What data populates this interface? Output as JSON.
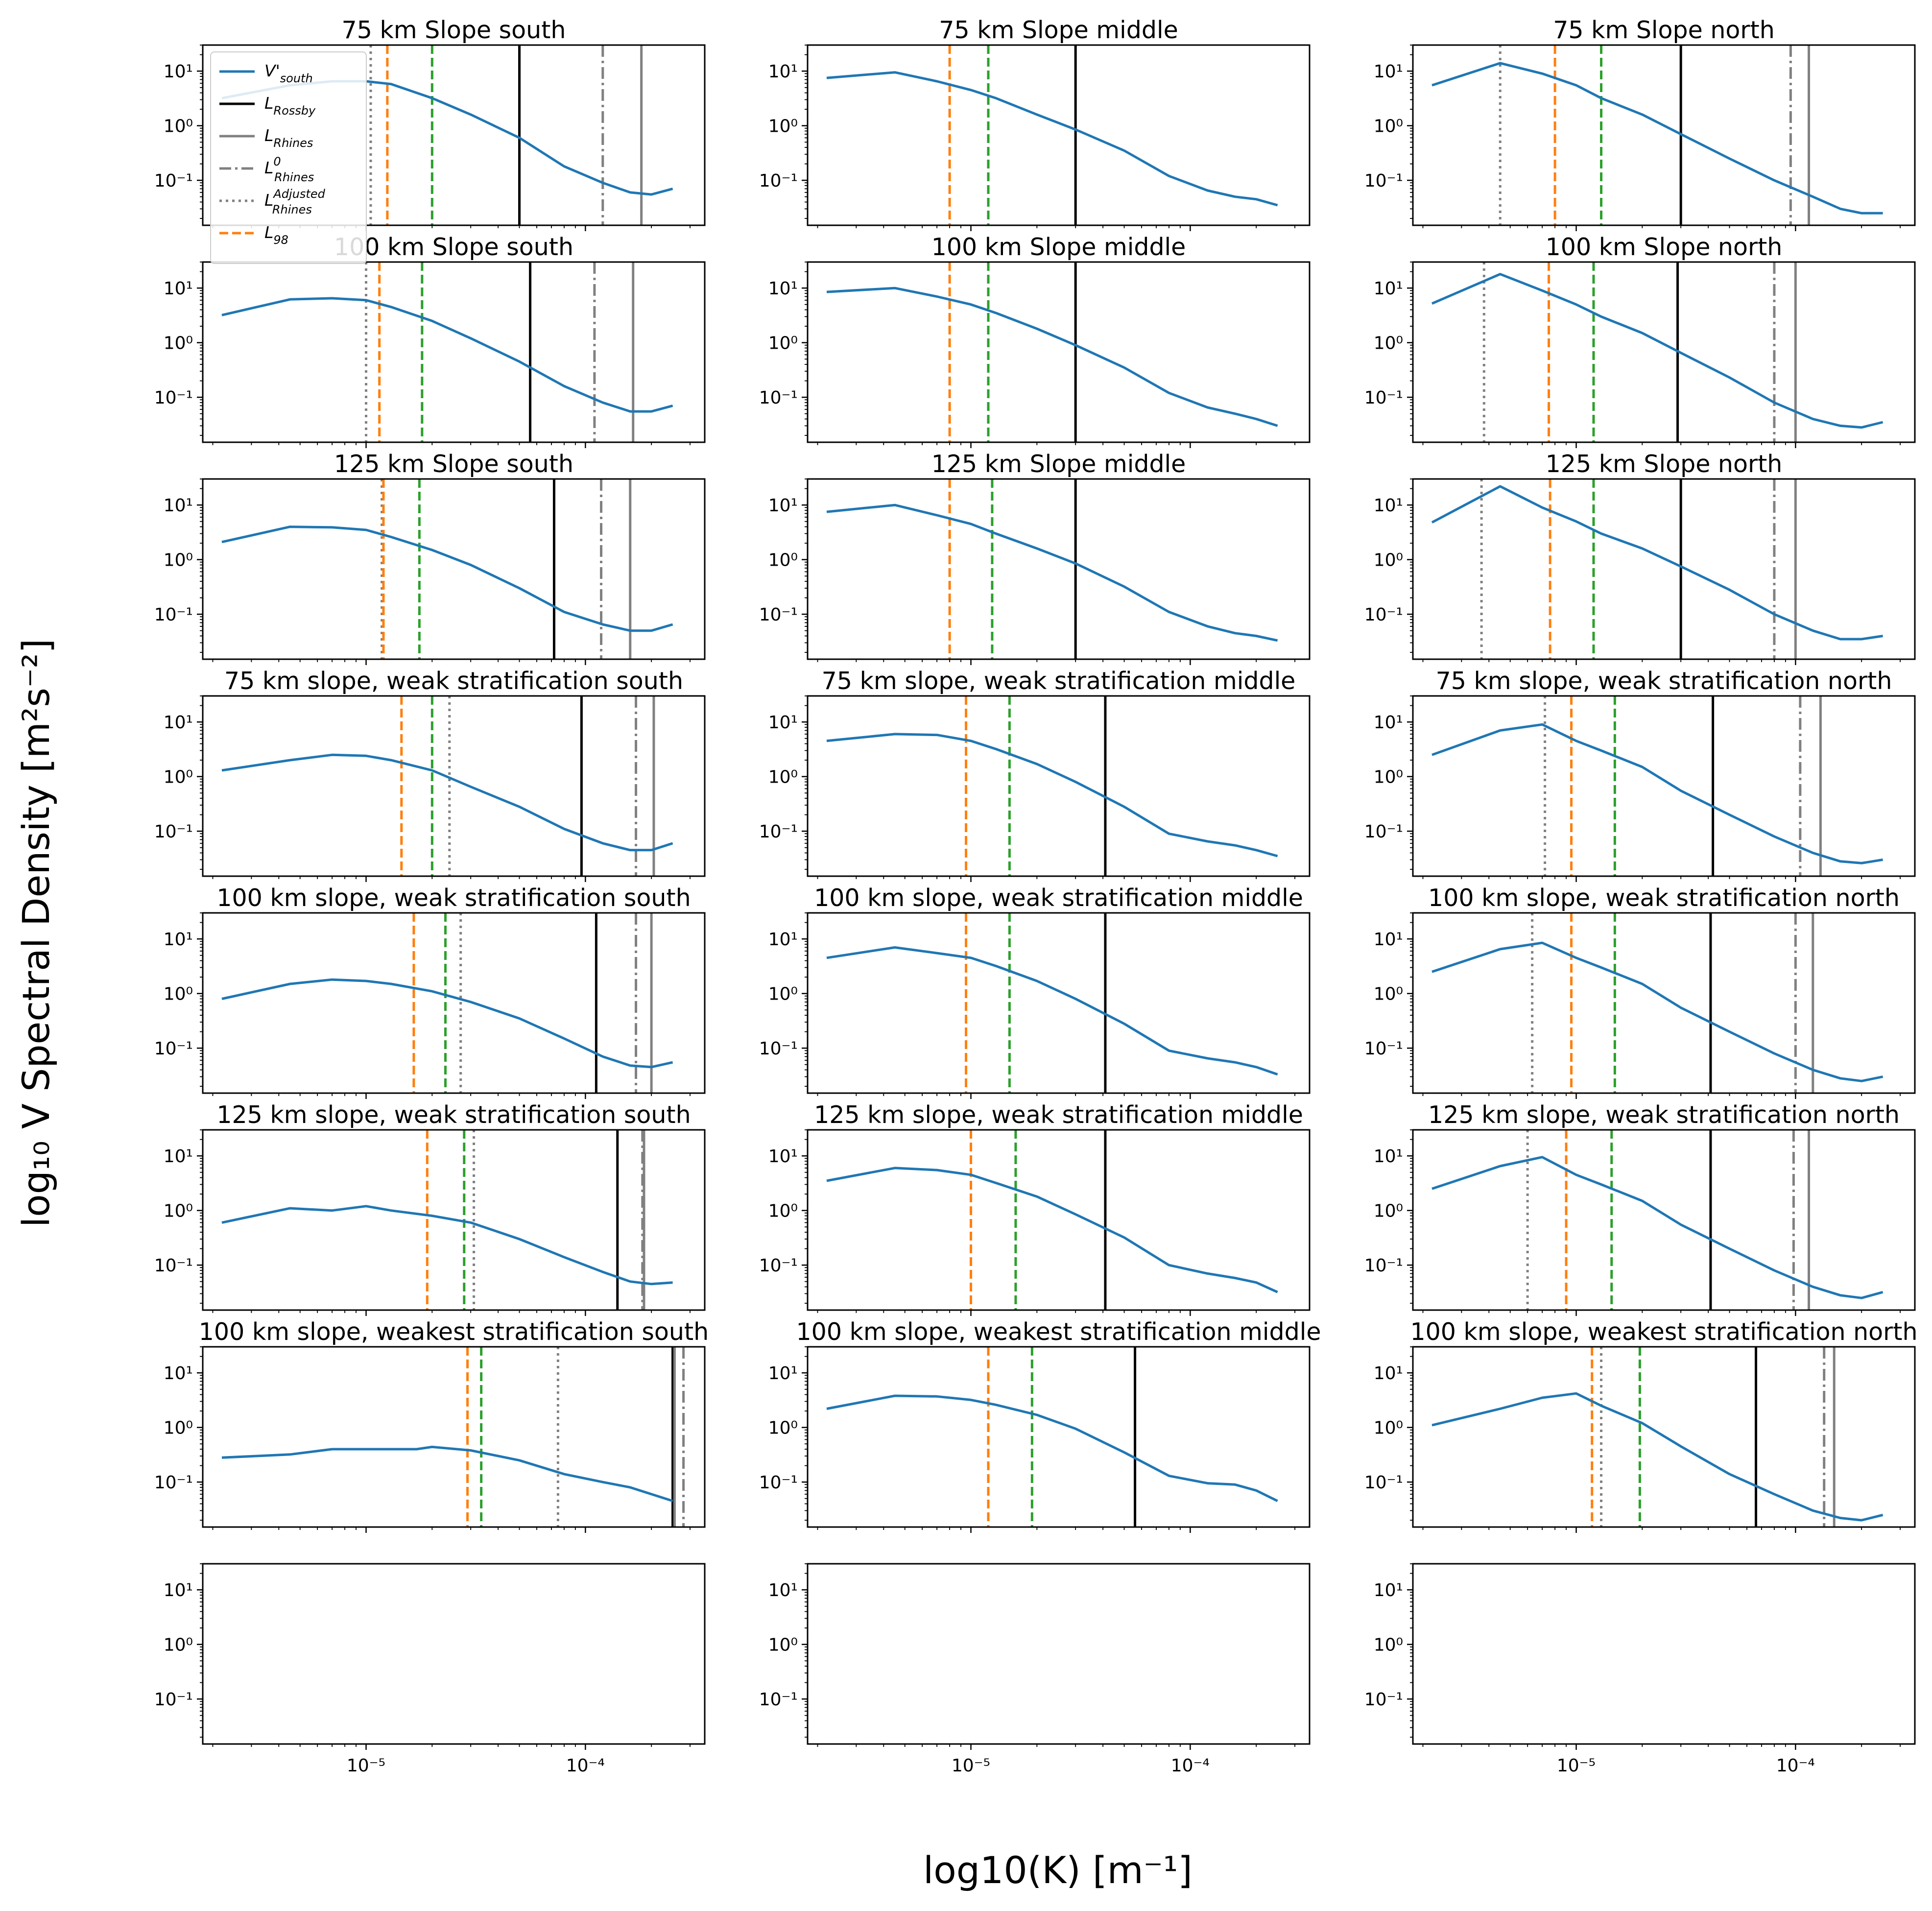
{
  "figure": {
    "xlabel": "log10(K) [m⁻¹]",
    "ylabel": "log₁₀ V Spectral Density [m²s⁻²]",
    "colors": {
      "curve": "#1f77b4",
      "rossby": "#000000",
      "rhines": "#808080",
      "rhines0": "#808080",
      "rhines_adj": "#808080",
      "l98": "#ff7f0e",
      "green": "#2ca02c"
    }
  },
  "legend": {
    "items": [
      {
        "name": "V'",
        "sub": "south",
        "style": "curve"
      },
      {
        "name": "L",
        "sub": "Rossby",
        "style": "rossby"
      },
      {
        "name": "L",
        "sub": "Rhines",
        "style": "rhines"
      },
      {
        "name": "L",
        "sub": "Rhines",
        "sup": "0",
        "style": "rhines0"
      },
      {
        "name": "L",
        "sub": "Rhines",
        "sup": "Adjusted",
        "style": "rhines_adj"
      },
      {
        "name": "L",
        "sub": "98",
        "style": "l98"
      }
    ]
  },
  "chart_data": {
    "type": "line",
    "xscale": "log",
    "yscale": "log",
    "xlim": [
      1.8e-06,
      0.00035
    ],
    "ylim": [
      0.015,
      30
    ],
    "xticks": [
      {
        "v": 1e-05,
        "label": "10⁻⁵"
      },
      {
        "v": 0.0001,
        "label": "10⁻⁴"
      }
    ],
    "yticks": [
      {
        "v": 10,
        "label": "10¹"
      },
      {
        "v": 1,
        "label": "10⁰"
      },
      {
        "v": 0.1,
        "label": "10⁻¹"
      }
    ],
    "panels": [
      {
        "title": "75 km Slope south",
        "row": 0,
        "col": 0,
        "x": [
          2.2e-06,
          4.5e-06,
          7e-06,
          1e-05,
          1.3e-05,
          2e-05,
          3e-05,
          5e-05,
          8e-05,
          0.00012,
          0.00016,
          0.0002,
          0.00025
        ],
        "y": [
          3.2,
          5.5,
          6.5,
          6.5,
          5.8,
          3.2,
          1.6,
          0.6,
          0.18,
          0.09,
          0.06,
          0.055,
          0.07
        ],
        "lines": {
          "rossby": 5e-05,
          "rhines": 0.00018,
          "rhines0": 0.00012,
          "rhines_adj": 1.05e-05,
          "l98": 1.25e-05,
          "green": 2e-05
        }
      },
      {
        "title": "75 km Slope middle",
        "row": 0,
        "col": 1,
        "x": [
          2.2e-06,
          4.5e-06,
          7e-06,
          1e-05,
          1.3e-05,
          2e-05,
          3e-05,
          5e-05,
          8e-05,
          0.00012,
          0.00016,
          0.0002,
          0.00025
        ],
        "y": [
          7.5,
          9.5,
          6.5,
          4.5,
          3.2,
          1.6,
          0.85,
          0.35,
          0.12,
          0.065,
          0.05,
          0.045,
          0.035
        ],
        "lines": {
          "rossby": 3e-05,
          "l98": 8e-06,
          "green": 1.2e-05
        }
      },
      {
        "title": "75 km Slope north",
        "row": 0,
        "col": 2,
        "x": [
          2.2e-06,
          4.5e-06,
          7e-06,
          1e-05,
          1.3e-05,
          2e-05,
          3e-05,
          5e-05,
          8e-05,
          0.00012,
          0.00016,
          0.0002,
          0.00025
        ],
        "y": [
          5.5,
          14,
          9,
          5.5,
          3.2,
          1.6,
          0.7,
          0.25,
          0.1,
          0.05,
          0.03,
          0.025,
          0.025
        ],
        "lines": {
          "rossby": 3e-05,
          "rhines": 0.000115,
          "rhines0": 9.5e-05,
          "rhines_adj": 4.5e-06,
          "l98": 8e-06,
          "green": 1.3e-05
        }
      },
      {
        "title": "100 km Slope south",
        "row": 1,
        "col": 0,
        "x": [
          2.2e-06,
          4.5e-06,
          7e-06,
          1e-05,
          1.3e-05,
          2e-05,
          3e-05,
          5e-05,
          8e-05,
          0.00012,
          0.00016,
          0.0002,
          0.00025
        ],
        "y": [
          3.2,
          6.2,
          6.5,
          6,
          4.5,
          2.5,
          1.2,
          0.45,
          0.16,
          0.08,
          0.055,
          0.055,
          0.07
        ],
        "lines": {
          "rossby": 5.6e-05,
          "rhines": 0.000165,
          "rhines0": 0.00011,
          "rhines_adj": 1e-05,
          "l98": 1.15e-05,
          "green": 1.8e-05
        }
      },
      {
        "title": "100 km Slope middle",
        "row": 1,
        "col": 1,
        "x": [
          2.2e-06,
          4.5e-06,
          7e-06,
          1e-05,
          1.3e-05,
          2e-05,
          3e-05,
          5e-05,
          8e-05,
          0.00012,
          0.00016,
          0.0002,
          0.00025
        ],
        "y": [
          8.5,
          10,
          7,
          5,
          3.5,
          1.8,
          0.9,
          0.35,
          0.12,
          0.065,
          0.05,
          0.04,
          0.03
        ],
        "lines": {
          "rossby": 3e-05,
          "l98": 8e-06,
          "green": 1.2e-05
        }
      },
      {
        "title": "100 km Slope north",
        "row": 1,
        "col": 2,
        "x": [
          2.2e-06,
          4.5e-06,
          7e-06,
          1e-05,
          1.3e-05,
          2e-05,
          3e-05,
          5e-05,
          8e-05,
          0.00012,
          0.00016,
          0.0002,
          0.00025
        ],
        "y": [
          5.2,
          18,
          9,
          5,
          3,
          1.5,
          0.65,
          0.23,
          0.08,
          0.04,
          0.03,
          0.028,
          0.035
        ],
        "lines": {
          "rossby": 2.9e-05,
          "rhines": 0.0001,
          "rhines0": 8e-05,
          "rhines_adj": 3.8e-06,
          "l98": 7.5e-06,
          "green": 1.2e-05
        }
      },
      {
        "title": "125 km Slope south",
        "row": 2,
        "col": 0,
        "x": [
          2.2e-06,
          4.5e-06,
          7e-06,
          1e-05,
          1.3e-05,
          2e-05,
          3e-05,
          5e-05,
          8e-05,
          0.00012,
          0.00016,
          0.0002,
          0.00025
        ],
        "y": [
          2.1,
          4,
          3.9,
          3.5,
          2.6,
          1.5,
          0.8,
          0.3,
          0.11,
          0.065,
          0.05,
          0.05,
          0.065
        ],
        "lines": {
          "rossby": 7.2e-05,
          "rhines": 0.00016,
          "rhines0": 0.000118,
          "rhines_adj": 1.18e-05,
          "l98": 1.2e-05,
          "green": 1.75e-05
        }
      },
      {
        "title": "125 km Slope middle",
        "row": 2,
        "col": 1,
        "x": [
          2.2e-06,
          4.5e-06,
          7e-06,
          1e-05,
          1.3e-05,
          2e-05,
          3e-05,
          5e-05,
          8e-05,
          0.00012,
          0.00016,
          0.0002,
          0.00025
        ],
        "y": [
          7.5,
          10,
          6.5,
          4.5,
          3,
          1.6,
          0.85,
          0.32,
          0.11,
          0.06,
          0.045,
          0.04,
          0.033
        ],
        "lines": {
          "rossby": 3e-05,
          "l98": 8e-06,
          "green": 1.25e-05
        }
      },
      {
        "title": "125 km Slope north",
        "row": 2,
        "col": 2,
        "x": [
          2.2e-06,
          4.5e-06,
          7e-06,
          1e-05,
          1.3e-05,
          2e-05,
          3e-05,
          5e-05,
          8e-05,
          0.00012,
          0.00016,
          0.0002,
          0.00025
        ],
        "y": [
          4.8,
          22,
          9,
          5,
          3,
          1.6,
          0.75,
          0.28,
          0.1,
          0.05,
          0.035,
          0.035,
          0.04
        ],
        "lines": {
          "rossby": 3e-05,
          "rhines": 0.0001,
          "rhines0": 8e-05,
          "rhines_adj": 3.7e-06,
          "l98": 7.6e-06,
          "green": 1.2e-05
        }
      },
      {
        "title": "75 km slope, weak stratification south",
        "row": 3,
        "col": 0,
        "x": [
          2.2e-06,
          4.5e-06,
          7e-06,
          1e-05,
          1.3e-05,
          2e-05,
          3e-05,
          5e-05,
          8e-05,
          0.00012,
          0.00016,
          0.0002,
          0.00025
        ],
        "y": [
          1.3,
          2,
          2.5,
          2.4,
          2,
          1.3,
          0.65,
          0.28,
          0.11,
          0.06,
          0.045,
          0.045,
          0.06
        ],
        "lines": {
          "rossby": 9.6e-05,
          "rhines": 0.000205,
          "rhines0": 0.00017,
          "rhines_adj": 2.4e-05,
          "l98": 1.45e-05,
          "green": 2e-05
        }
      },
      {
        "title": "75 km slope, weak stratification middle",
        "row": 3,
        "col": 1,
        "x": [
          2.2e-06,
          4.5e-06,
          7e-06,
          1e-05,
          1.3e-05,
          2e-05,
          3e-05,
          5e-05,
          8e-05,
          0.00012,
          0.00016,
          0.0002,
          0.00025
        ],
        "y": [
          4.5,
          6,
          5.8,
          4.5,
          3.2,
          1.7,
          0.8,
          0.28,
          0.09,
          0.065,
          0.055,
          0.045,
          0.035
        ],
        "lines": {
          "rossby": 4.1e-05,
          "l98": 9.5e-06,
          "green": 1.5e-05
        }
      },
      {
        "title": "75 km slope, weak stratification north",
        "row": 3,
        "col": 2,
        "x": [
          2.2e-06,
          4.5e-06,
          7e-06,
          1e-05,
          1.3e-05,
          2e-05,
          3e-05,
          5e-05,
          8e-05,
          0.00012,
          0.00016,
          0.0002,
          0.00025
        ],
        "y": [
          2.5,
          7,
          9,
          4.5,
          3,
          1.5,
          0.55,
          0.2,
          0.08,
          0.04,
          0.028,
          0.026,
          0.03
        ],
        "lines": {
          "rossby": 4.2e-05,
          "rhines": 0.00013,
          "rhines0": 0.000105,
          "rhines_adj": 7.2e-06,
          "l98": 9.5e-06,
          "green": 1.5e-05
        }
      },
      {
        "title": "100 km slope, weak stratification south",
        "row": 4,
        "col": 0,
        "x": [
          2.2e-06,
          4.5e-06,
          7e-06,
          1e-05,
          1.3e-05,
          2e-05,
          3e-05,
          5e-05,
          8e-05,
          0.00012,
          0.00016,
          0.0002,
          0.00025
        ],
        "y": [
          0.8,
          1.5,
          1.8,
          1.7,
          1.5,
          1.1,
          0.7,
          0.35,
          0.15,
          0.07,
          0.048,
          0.045,
          0.055
        ],
        "lines": {
          "rossby": 0.000112,
          "rhines": 0.0002,
          "rhines0": 0.00017,
          "rhines_adj": 2.7e-05,
          "l98": 1.65e-05,
          "green": 2.3e-05
        }
      },
      {
        "title": "100 km slope, weak stratification middle",
        "row": 4,
        "col": 1,
        "x": [
          2.2e-06,
          4.5e-06,
          7e-06,
          1e-05,
          1.3e-05,
          2e-05,
          3e-05,
          5e-05,
          8e-05,
          0.00012,
          0.00016,
          0.0002,
          0.00025
        ],
        "y": [
          4.5,
          7,
          5.5,
          4.5,
          3.2,
          1.7,
          0.8,
          0.28,
          0.09,
          0.065,
          0.055,
          0.045,
          0.033
        ],
        "lines": {
          "rossby": 4.1e-05,
          "l98": 9.5e-06,
          "green": 1.5e-05
        }
      },
      {
        "title": "100 km slope, weak stratification north",
        "row": 4,
        "col": 2,
        "x": [
          2.2e-06,
          4.5e-06,
          7e-06,
          1e-05,
          1.3e-05,
          2e-05,
          3e-05,
          5e-05,
          8e-05,
          0.00012,
          0.00016,
          0.0002,
          0.00025
        ],
        "y": [
          2.5,
          6.5,
          8.5,
          4.5,
          3,
          1.5,
          0.55,
          0.2,
          0.08,
          0.04,
          0.028,
          0.025,
          0.03
        ],
        "lines": {
          "rossby": 4.1e-05,
          "rhines": 0.00012,
          "rhines0": 0.0001,
          "rhines_adj": 6.3e-06,
          "l98": 9.5e-06,
          "green": 1.5e-05
        }
      },
      {
        "title": "125 km slope, weak stratification south",
        "row": 5,
        "col": 0,
        "x": [
          2.2e-06,
          4.5e-06,
          7e-06,
          1e-05,
          1.3e-05,
          2e-05,
          3e-05,
          5e-05,
          8e-05,
          0.00012,
          0.00016,
          0.0002,
          0.00025
        ],
        "y": [
          0.6,
          1.1,
          1,
          1.2,
          1,
          0.8,
          0.6,
          0.3,
          0.14,
          0.075,
          0.05,
          0.045,
          0.048
        ],
        "lines": {
          "rossby": 0.00014,
          "rhines": 0.000185,
          "rhines0": 0.000182,
          "rhines_adj": 3.1e-05,
          "l98": 1.9e-05,
          "green": 2.8e-05
        }
      },
      {
        "title": "125 km slope, weak stratification middle",
        "row": 5,
        "col": 1,
        "x": [
          2.2e-06,
          4.5e-06,
          7e-06,
          1e-05,
          1.3e-05,
          2e-05,
          3e-05,
          5e-05,
          8e-05,
          0.00012,
          0.00016,
          0.0002,
          0.00025
        ],
        "y": [
          3.5,
          6,
          5.5,
          4.5,
          3.2,
          1.8,
          0.85,
          0.32,
          0.1,
          0.07,
          0.058,
          0.048,
          0.032
        ],
        "lines": {
          "rossby": 4.1e-05,
          "l98": 1e-05,
          "green": 1.6e-05
        }
      },
      {
        "title": "125 km slope, weak stratification north",
        "row": 5,
        "col": 2,
        "x": [
          2.2e-06,
          4.5e-06,
          7e-06,
          1e-05,
          1.3e-05,
          2e-05,
          3e-05,
          5e-05,
          8e-05,
          0.00012,
          0.00016,
          0.0002,
          0.00025
        ],
        "y": [
          2.5,
          6.5,
          9.5,
          4.5,
          3,
          1.5,
          0.55,
          0.2,
          0.08,
          0.04,
          0.028,
          0.025,
          0.032
        ],
        "lines": {
          "rossby": 4.1e-05,
          "rhines": 0.000115,
          "rhines0": 9.8e-05,
          "rhines_adj": 6e-06,
          "l98": 9e-06,
          "green": 1.45e-05
        }
      },
      {
        "title": "100 km slope, weakest stratification south",
        "row": 6,
        "col": 0,
        "x": [
          2.2e-06,
          4.5e-06,
          7e-06,
          1e-05,
          1.3e-05,
          1.7e-05,
          2e-05,
          3e-05,
          5e-05,
          8e-05,
          0.00012,
          0.00016,
          0.0002,
          0.00025
        ],
        "y": [
          0.28,
          0.32,
          0.4,
          0.4,
          0.4,
          0.4,
          0.44,
          0.38,
          0.25,
          0.14,
          0.1,
          0.08,
          0.06,
          0.045
        ],
        "lines": {
          "rossby": 0.00025,
          "rhines": 0.000255,
          "rhines0": 0.00028,
          "rhines_adj": 7.5e-05,
          "l98": 2.9e-05,
          "green": 3.35e-05
        }
      },
      {
        "title": "100 km slope, weakest stratification middle",
        "row": 6,
        "col": 1,
        "x": [
          2.2e-06,
          4.5e-06,
          7e-06,
          1e-05,
          1.3e-05,
          2e-05,
          3e-05,
          5e-05,
          8e-05,
          0.00012,
          0.00016,
          0.0002,
          0.00025
        ],
        "y": [
          2.2,
          3.8,
          3.7,
          3.2,
          2.6,
          1.7,
          0.95,
          0.35,
          0.13,
          0.095,
          0.09,
          0.07,
          0.045
        ],
        "lines": {
          "rossby": 5.6e-05,
          "l98": 1.2e-05,
          "green": 1.9e-05
        }
      },
      {
        "title": "100 km slope, weakest stratification north",
        "row": 6,
        "col": 2,
        "x": [
          2.2e-06,
          4.5e-06,
          7e-06,
          1e-05,
          1.3e-05,
          2e-05,
          3e-05,
          5e-05,
          8e-05,
          0.00012,
          0.00016,
          0.0002,
          0.00025
        ],
        "y": [
          1.1,
          2.2,
          3.5,
          4.2,
          2.5,
          1.2,
          0.45,
          0.14,
          0.06,
          0.03,
          0.022,
          0.02,
          0.025
        ],
        "lines": {
          "rossby": 6.6e-05,
          "rhines": 0.00015,
          "rhines0": 0.000135,
          "rhines_adj": 1.3e-05,
          "l98": 1.18e-05,
          "green": 1.95e-05
        }
      },
      {
        "title": "",
        "row": 7,
        "col": 0,
        "x": [],
        "y": [],
        "lines": {}
      },
      {
        "title": "",
        "row": 7,
        "col": 1,
        "x": [],
        "y": [],
        "lines": {}
      },
      {
        "title": "",
        "row": 7,
        "col": 2,
        "x": [],
        "y": [],
        "lines": {}
      }
    ]
  }
}
